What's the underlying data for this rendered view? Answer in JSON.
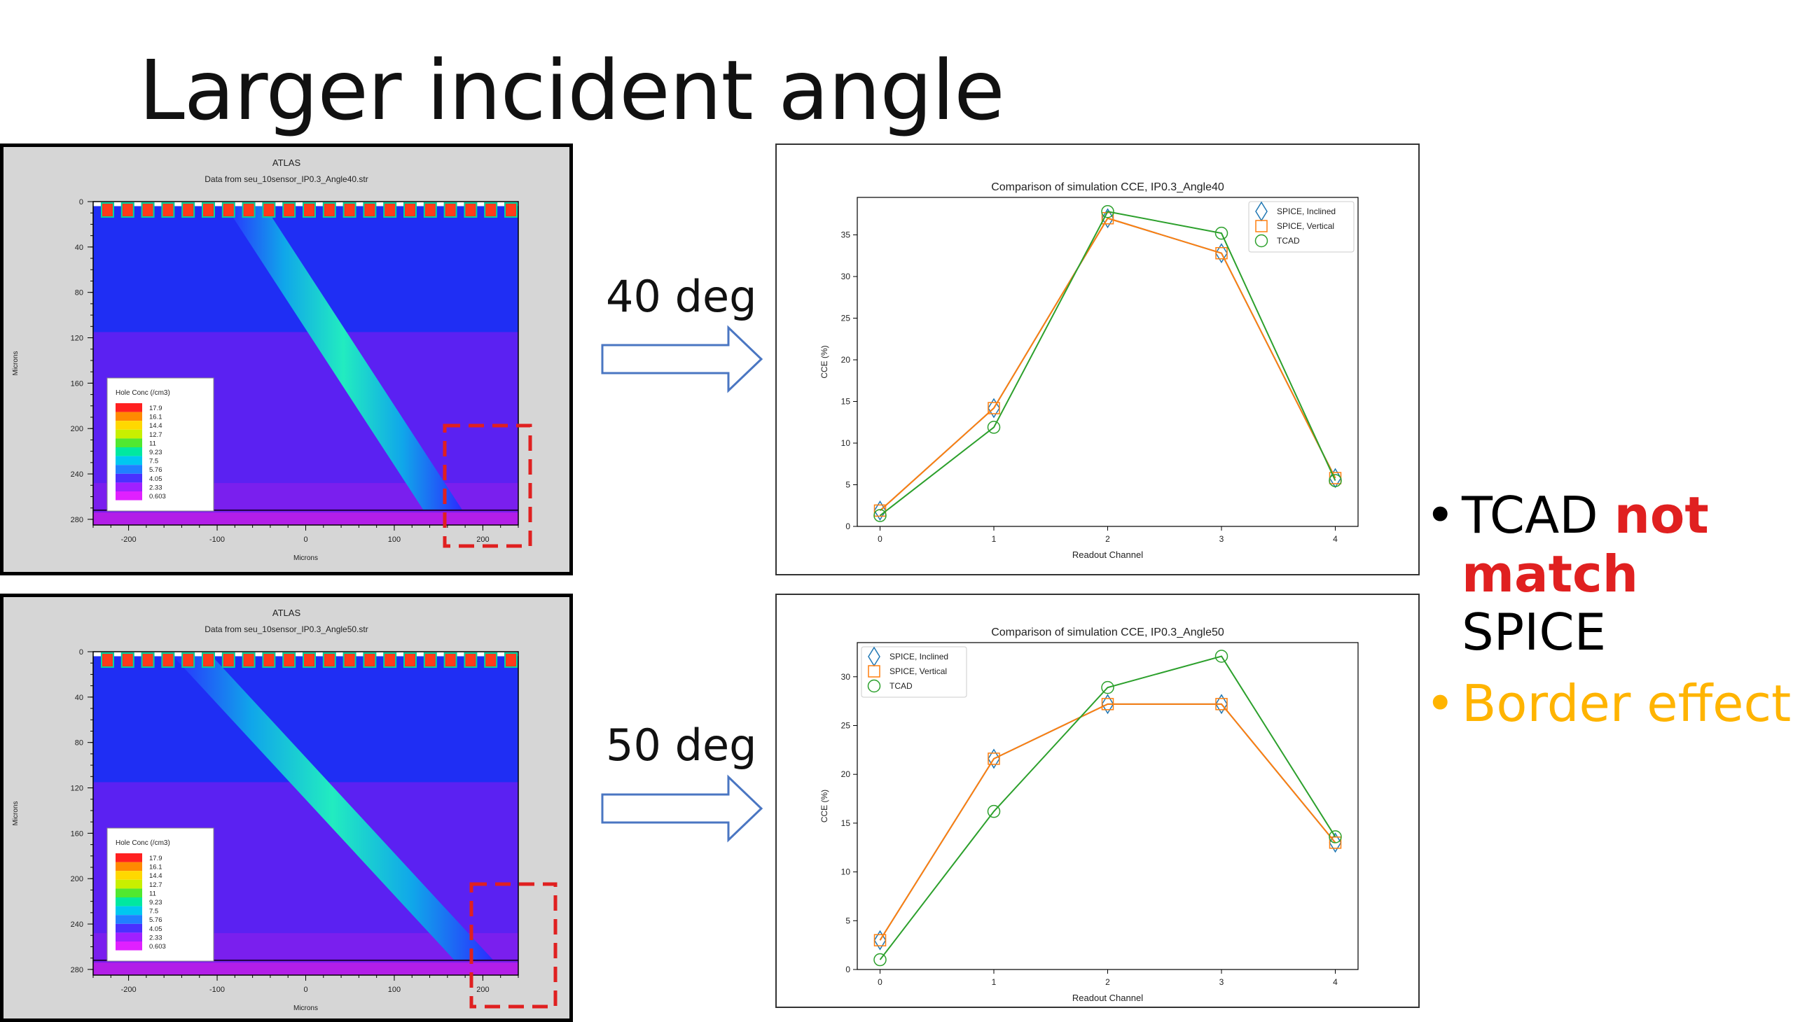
{
  "slide": {
    "title": "Larger incident angle",
    "arrow_labels": [
      "40 deg",
      "50 deg"
    ],
    "bullets": [
      {
        "dot_color": "#000000",
        "parts": [
          {
            "text": "TCAD ",
            "color": "#000000"
          },
          {
            "text": "not",
            "color": "#e02020",
            "bold": true
          },
          {
            "break": true
          },
          {
            "text": "match",
            "color": "#e02020",
            "bold": true
          },
          {
            "text": " SPICE",
            "color": "#000000"
          }
        ]
      },
      {
        "dot_color": "#ffb400",
        "parts": [
          {
            "text": "Border effect",
            "color": "#ffb400"
          }
        ]
      }
    ],
    "colors": {
      "highlight_box": "#e02020",
      "arrow_stroke": "#4a76c2"
    }
  },
  "simulations": [
    {
      "angle": 40,
      "title1": "ATLAS",
      "title2": "Data from seu_10sensor_IP0.3_Angle40.str",
      "xlabel": "Microns",
      "ylabel": "Microns",
      "xlim": [
        -240,
        240
      ],
      "ylim": [
        0,
        285
      ],
      "xticks": [
        -200,
        -100,
        0,
        100,
        200
      ],
      "yticks": [
        0,
        40,
        80,
        120,
        160,
        200,
        240,
        280
      ],
      "track": {
        "x_top": -70,
        "x_bottom": 155
      },
      "legend": {
        "title": "Hole Conc (/cm3)",
        "values": [
          "17.9",
          "16.1",
          "14.4",
          "12.7",
          "11",
          "9.23",
          "7.5",
          "5.76",
          "4.05",
          "2.33",
          "0.603"
        ]
      }
    },
    {
      "angle": 50,
      "title1": "ATLAS",
      "title2": "Data from seu_10sensor_IP0.3_Angle50.str",
      "xlabel": "Microns",
      "ylabel": "Microns",
      "xlim": [
        -240,
        240
      ],
      "ylim": [
        0,
        285
      ],
      "xticks": [
        -200,
        -100,
        0,
        100,
        200
      ],
      "yticks": [
        0,
        40,
        80,
        120,
        160,
        200,
        240,
        280
      ],
      "track": {
        "x_top": -130,
        "x_bottom": 190
      },
      "legend": {
        "title": "Hole Conc (/cm3)",
        "values": [
          "17.9",
          "16.1",
          "14.4",
          "12.7",
          "11",
          "9.23",
          "7.5",
          "5.76",
          "4.05",
          "2.33",
          "0.603"
        ]
      }
    }
  ],
  "chart_data": [
    {
      "type": "line",
      "title": "Comparison of simulation CCE, IP0.3_Angle40",
      "xlabel": "Readout Channel",
      "ylabel": "CCE (%)",
      "x": [
        0,
        1,
        2,
        3,
        4
      ],
      "xlim": [
        -0.2,
        4.2
      ],
      "ylim": [
        0,
        39.5
      ],
      "yticks": [
        0,
        5,
        10,
        15,
        20,
        25,
        30,
        35
      ],
      "legend_position": "top-right",
      "series": [
        {
          "name": "SPICE, Inclined",
          "marker": "diamond",
          "color": "#1f77b4",
          "values": [
            1.9,
            14.2,
            37.0,
            32.8,
            5.8
          ]
        },
        {
          "name": "SPICE, Vertical",
          "marker": "square",
          "color": "#ff7f0e",
          "values": [
            1.9,
            14.2,
            37.0,
            32.8,
            5.8
          ]
        },
        {
          "name": "TCAD",
          "marker": "circle",
          "color": "#2ca02c",
          "values": [
            1.3,
            11.9,
            37.8,
            35.2,
            5.5
          ]
        }
      ]
    },
    {
      "type": "line",
      "title": "Comparison of simulation CCE, IP0.3_Angle50",
      "xlabel": "Readout Channel",
      "ylabel": "CCE (%)",
      "x": [
        0,
        1,
        2,
        3,
        4
      ],
      "xlim": [
        -0.2,
        4.2
      ],
      "ylim": [
        0,
        33.5
      ],
      "yticks": [
        0,
        5,
        10,
        15,
        20,
        25,
        30
      ],
      "legend_position": "top-left",
      "series": [
        {
          "name": "SPICE, Inclined",
          "marker": "diamond",
          "color": "#1f77b4",
          "values": [
            3.0,
            21.6,
            27.2,
            27.2,
            13.0
          ]
        },
        {
          "name": "SPICE, Vertical",
          "marker": "square",
          "color": "#ff7f0e",
          "values": [
            3.0,
            21.6,
            27.2,
            27.2,
            13.0
          ]
        },
        {
          "name": "TCAD",
          "marker": "circle",
          "color": "#2ca02c",
          "values": [
            1.0,
            16.2,
            28.9,
            32.1,
            13.6
          ]
        }
      ]
    }
  ]
}
